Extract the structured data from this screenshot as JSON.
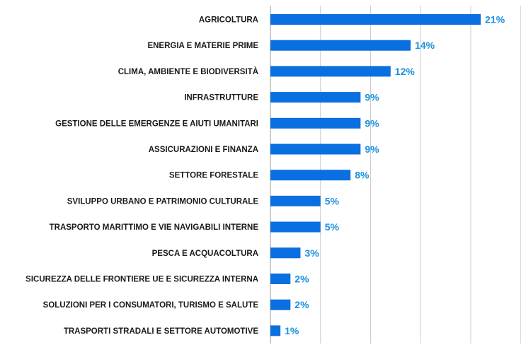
{
  "chart_data": {
    "type": "bar",
    "orientation": "horizontal",
    "categories": [
      "AGRICOLTURA",
      "ENERGIA E MATERIE PRIME",
      "CLIMA, AMBIENTE E BIODIVERSITÀ",
      "INFRASTRUTTURE",
      "GESTIONE DELLE EMERGENZE E AIUTI UMANITARI",
      "ASSICURAZIONI E FINANZA",
      "SETTORE FORESTALE",
      "SVILUPPO URBANO E PATRIMONIO CULTURALE",
      "TRASPORTO MARITTIMO E VIE NAVIGABILI INTERNE",
      "PESCA E ACQUACOLTURA",
      "SICUREZZA DELLE FRONTIERE UE E SICUREZZA INTERNA",
      "SOLUZIONI PER I CONSUMATORI, TURISMO E SALUTE",
      "TRASPORTI STRADALI E SETTORE AUTOMOTIVE"
    ],
    "values": [
      21,
      14,
      12,
      9,
      9,
      9,
      8,
      5,
      5,
      3,
      2,
      2,
      1
    ],
    "value_labels": [
      "21%",
      "14%",
      "12%",
      "9%",
      "9%",
      "9%",
      "8%",
      "5%",
      "5%",
      "3%",
      "2%",
      "2%",
      "1%"
    ],
    "title": "",
    "xlabel": "",
    "ylabel": "",
    "xlim": [
      0,
      25
    ],
    "grid": true,
    "colors": {
      "bar": "#0a6fe0",
      "value_label": "#1a90e0",
      "gridline": "#cccccc",
      "category_label": "#1a1a1a"
    }
  }
}
